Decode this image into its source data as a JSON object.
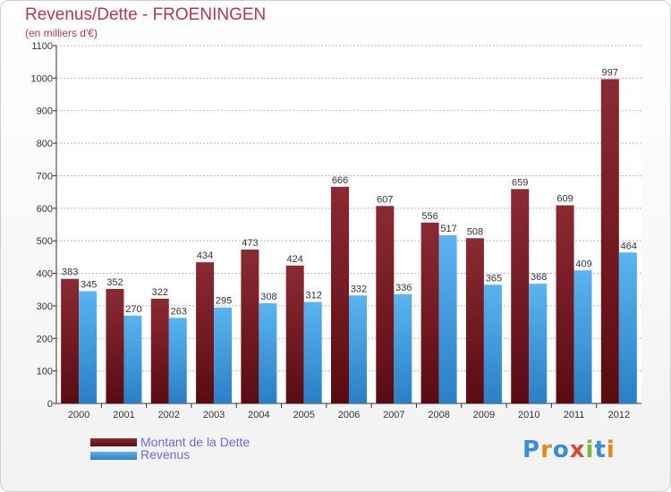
{
  "colors": {
    "debt_top": "#8b2a33",
    "debt_bottom": "#5a0b12",
    "rev_top": "#5ab4f0",
    "rev_bottom": "#2a7fc6",
    "title": "#b03a4e"
  },
  "logo": {
    "text": "Proxiti"
  },
  "chart_data": {
    "type": "bar",
    "title": "Revenus/Dette - FROENINGEN",
    "subtitle": "(en milliers d'€)",
    "xlabel": "",
    "ylabel": "",
    "ylim": [
      0,
      1100
    ],
    "yticks": [
      0,
      100,
      200,
      300,
      400,
      500,
      600,
      700,
      800,
      900,
      1000,
      1100
    ],
    "grid": true,
    "legend_position": "bottom-left",
    "categories": [
      "2000",
      "2001",
      "2002",
      "2003",
      "2004",
      "2005",
      "2006",
      "2007",
      "2008",
      "2009",
      "2010",
      "2011",
      "2012"
    ],
    "series": [
      {
        "name": "Montant de la Dette",
        "values": [
          383,
          352,
          322,
          434,
          473,
          424,
          666,
          607,
          556,
          508,
          659,
          609,
          997
        ]
      },
      {
        "name": "Revenus",
        "values": [
          345,
          270,
          263,
          295,
          308,
          312,
          332,
          336,
          517,
          365,
          368,
          409,
          464
        ]
      }
    ]
  }
}
